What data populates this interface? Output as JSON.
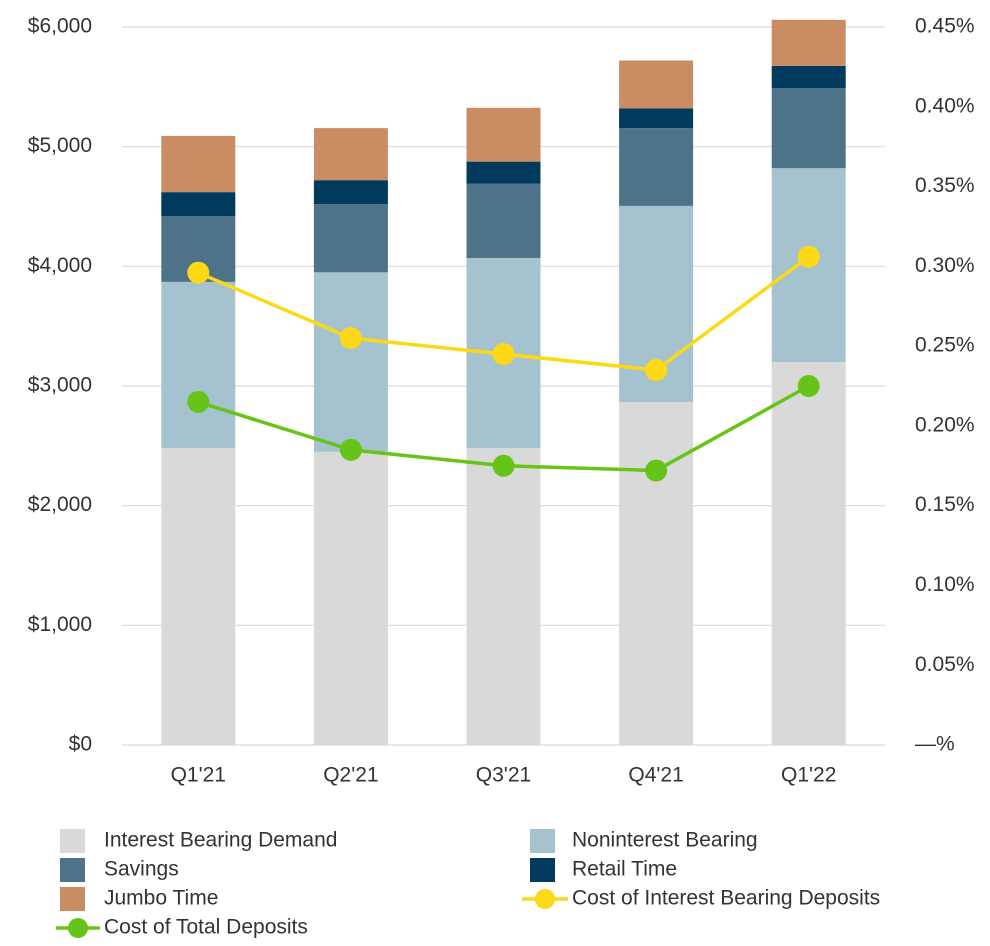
{
  "chart_data": {
    "type": "stacked_bar_line",
    "categories": [
      "Q1'21",
      "Q2'21",
      "Q3'21",
      "Q4'21",
      "Q1'22"
    ],
    "series": [
      {
        "name": "Interest Bearing Demand",
        "color": "#d9d9d9",
        "values": [
          2480,
          2450,
          2480,
          2865,
          3200
        ]
      },
      {
        "name": "Noninterest Bearing",
        "color": "#a5c3cf",
        "values": [
          1390,
          1500,
          1590,
          1640,
          1620
        ]
      },
      {
        "name": "Savings",
        "color": "#4e7389",
        "values": [
          550,
          570,
          620,
          650,
          670
        ]
      },
      {
        "name": "Retail Time",
        "color": "#003a5c",
        "values": [
          200,
          200,
          185,
          165,
          185
        ]
      },
      {
        "name": "Jumbo Time",
        "color": "#c98c63",
        "values": [
          470,
          435,
          450,
          400,
          385
        ]
      },
      {
        "name": "Cost of Interest Bearing Deposits",
        "color": "#fcd914",
        "axis": "y2",
        "values": [
          0.296,
          0.255,
          0.245,
          0.235,
          0.306
        ]
      },
      {
        "name": "Cost of Total Deposits",
        "color": "#66c419",
        "axis": "y2",
        "values": [
          0.215,
          0.185,
          0.175,
          0.172,
          0.225
        ]
      }
    ],
    "ylim": [
      0,
      6000
    ],
    "yticks": [
      {
        "value": 0,
        "label": "$0"
      },
      {
        "value": 1000,
        "label": "$1,000"
      },
      {
        "value": 2000,
        "label": "$2,000"
      },
      {
        "value": 3000,
        "label": "$3,000"
      },
      {
        "value": 4000,
        "label": "$4,000"
      },
      {
        "value": 5000,
        "label": "$5,000"
      },
      {
        "value": 6000,
        "label": "$6,000"
      }
    ],
    "y2lim": [
      0,
      0.45
    ],
    "y2ticks": [
      {
        "value": 0,
        "label": "—%"
      },
      {
        "value": 0.05,
        "label": "0.05%"
      },
      {
        "value": 0.1,
        "label": "0.10%"
      },
      {
        "value": 0.15,
        "label": "0.15%"
      },
      {
        "value": 0.2,
        "label": "0.20%"
      },
      {
        "value": 0.25,
        "label": "0.25%"
      },
      {
        "value": 0.3,
        "label": "0.30%"
      },
      {
        "value": 0.35,
        "label": "0.35%"
      },
      {
        "value": 0.4,
        "label": "0.40%"
      },
      {
        "value": 0.45,
        "label": "0.45%"
      }
    ],
    "grid": true,
    "legend": "bottom"
  }
}
